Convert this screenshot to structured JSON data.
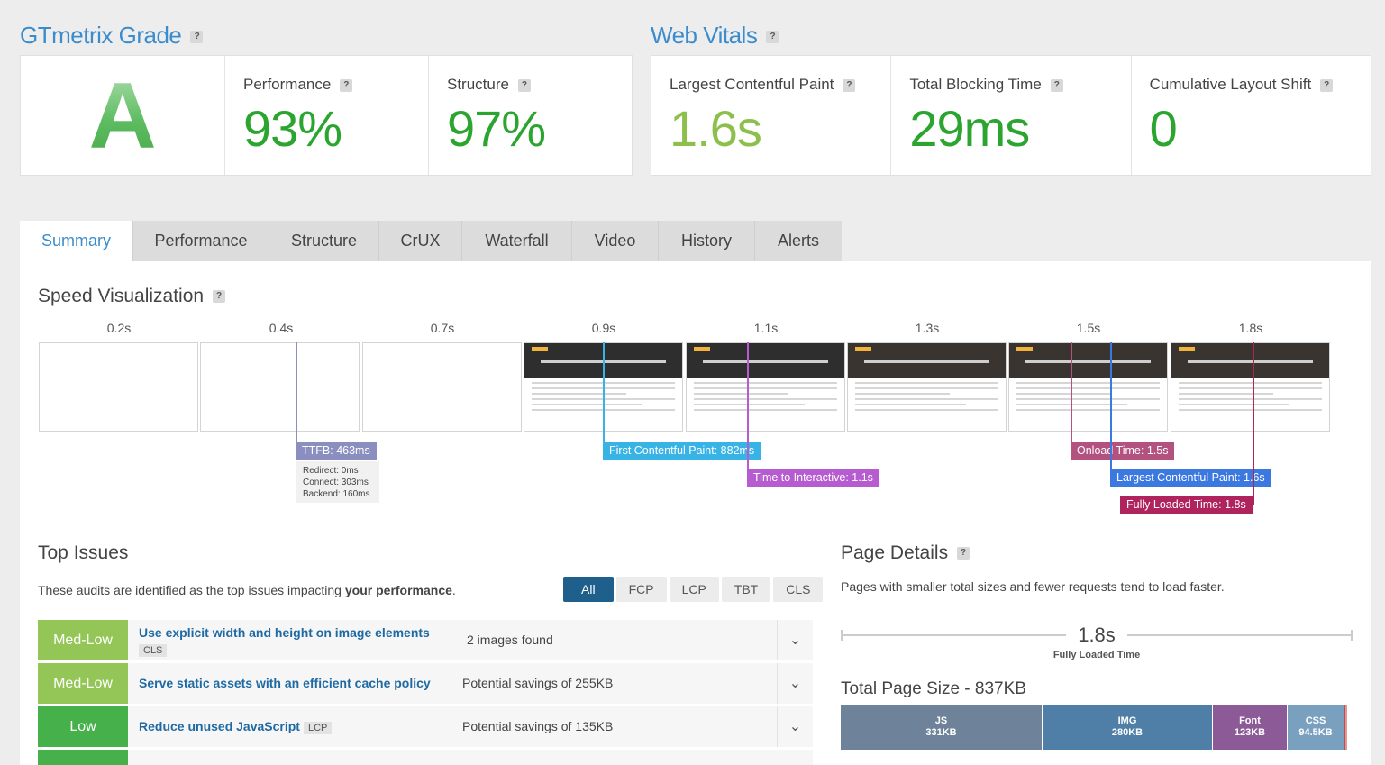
{
  "grade": {
    "title": "GTmetrix Grade",
    "letter": "A",
    "performance_label": "Performance",
    "performance_value": "93%",
    "structure_label": "Structure",
    "structure_value": "97%"
  },
  "vitals": {
    "title": "Web Vitals",
    "lcp_label": "Largest Contentful Paint",
    "lcp_value": "1.6s",
    "tbt_label": "Total Blocking Time",
    "tbt_value": "29ms",
    "cls_label": "Cumulative Layout Shift",
    "cls_value": "0"
  },
  "help_mark": "?",
  "tabs": [
    "Summary",
    "Performance",
    "Structure",
    "CrUX",
    "Waterfall",
    "Video",
    "History",
    "Alerts"
  ],
  "speed": {
    "title": "Speed Visualization",
    "times": [
      "0.2s",
      "0.4s",
      "0.7s",
      "0.9s",
      "1.1s",
      "1.3s",
      "1.5s",
      "1.8s"
    ],
    "ttfb": "TTFB: 463ms",
    "redirect": "Redirect: 0ms",
    "connect": "Connect: 303ms",
    "backend": "Backend: 160ms",
    "fcp": "First Contentful Paint: 882ms",
    "tti": "Time to Interactive: 1.1s",
    "onload": "Onload Time: 1.5s",
    "lcp": "Largest Contentful Paint: 1.6s",
    "fully_loaded": "Fully Loaded Time: 1.8s"
  },
  "colors": {
    "ttfb": "#8a8fbf",
    "fcp": "#37b3e6",
    "tti": "#b65cd0",
    "onload": "#b4527f",
    "lcp": "#3b78e0",
    "fully": "#b0245e",
    "medlow": "#93c656",
    "low": "#46b04a"
  },
  "top_issues": {
    "title": "Top Issues",
    "desc_prefix": "These audits are identified as the top issues impacting ",
    "desc_bold": "your performance",
    "desc_suffix": ".",
    "filters": [
      "All",
      "FCP",
      "LCP",
      "TBT",
      "CLS"
    ],
    "items": [
      {
        "severity": "Med-Low",
        "title": "Use explicit width and height on image elements",
        "tag": "CLS",
        "detail": "2 images found"
      },
      {
        "severity": "Med-Low",
        "title": "Serve static assets with an efficient cache policy",
        "tag": "",
        "detail": "Potential savings of 255KB"
      },
      {
        "severity": "Low",
        "title": "Reduce unused JavaScript",
        "tag": "LCP",
        "detail": "Potential savings of 135KB"
      }
    ],
    "chevron": "⌄"
  },
  "page_details": {
    "title": "Page Details",
    "desc": "Pages with smaller total sizes and fewer requests tend to load faster.",
    "fully_loaded_value": "1.8s",
    "fully_loaded_label": "Fully Loaded Time",
    "total_size": "Total Page Size - 837KB",
    "segments": [
      {
        "type": "JS",
        "size": "331KB",
        "color": "#6e8299"
      },
      {
        "type": "IMG",
        "size": "280KB",
        "color": "#4f7fa6"
      },
      {
        "type": "Font",
        "size": "123KB",
        "color": "#8d5a98"
      },
      {
        "type": "CSS",
        "size": "94.5KB",
        "color": "#7aa0c0"
      }
    ]
  }
}
